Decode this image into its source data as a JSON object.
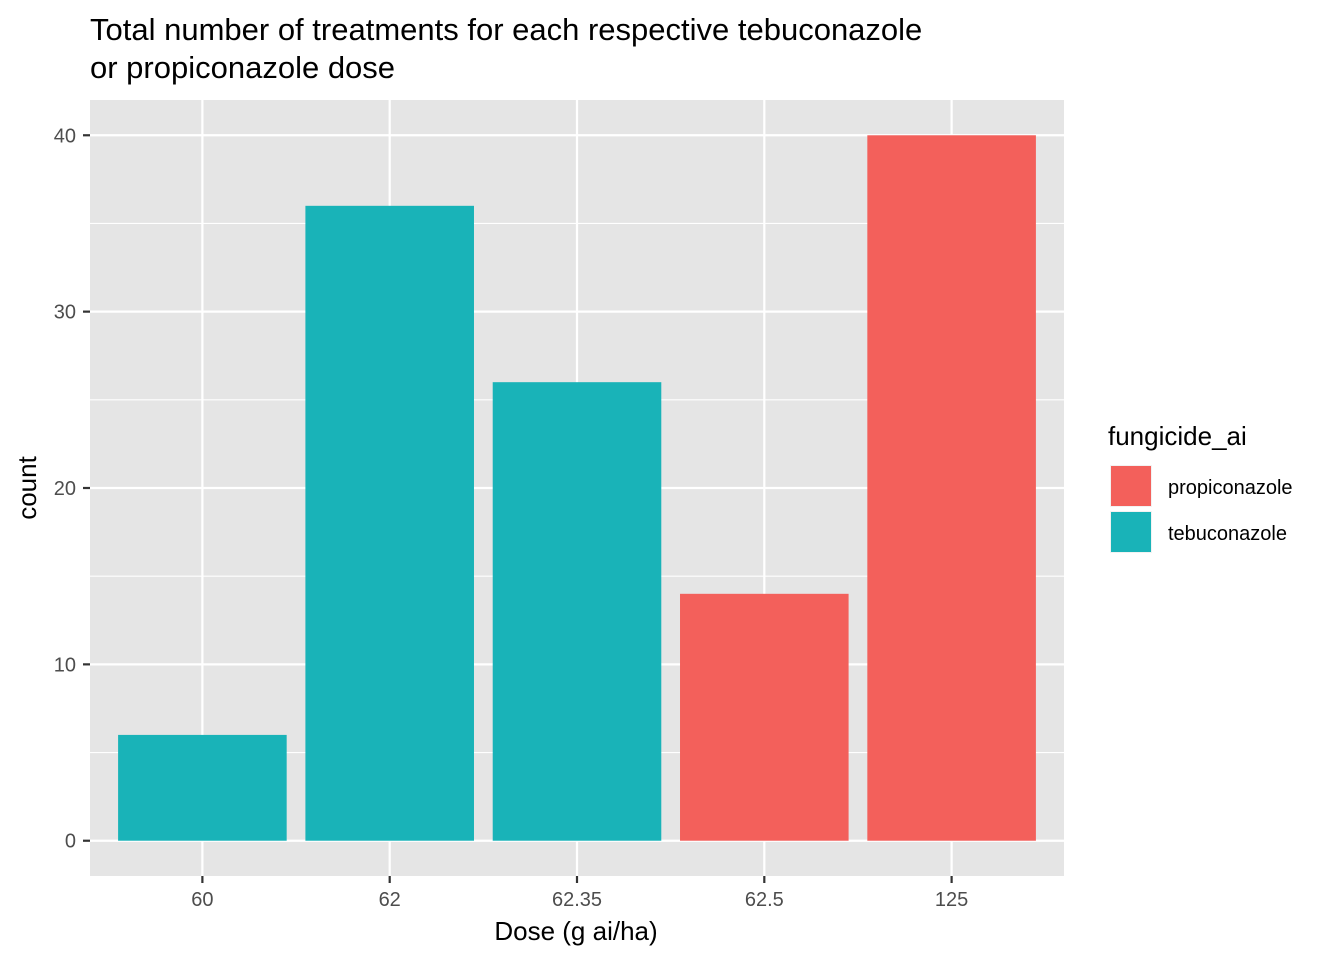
{
  "chart_data": {
    "type": "bar",
    "title": "Total number of treatments for each respective tebuconazole or propiconazole dose",
    "title_lines": [
      "Total number of treatments for each respective tebuconazole",
      "or propiconazole dose"
    ],
    "xlabel": "Dose (g ai/ha)",
    "ylabel": "count",
    "categories": [
      "60",
      "62",
      "62.35",
      "62.5",
      "125"
    ],
    "values": [
      6,
      36,
      26,
      14,
      40
    ],
    "bar_group": [
      "tebuconazole",
      "tebuconazole",
      "tebuconazole",
      "propiconazole",
      "propiconazole"
    ],
    "ylim": [
      -2,
      42
    ],
    "yticks": [
      0,
      10,
      20,
      30,
      40
    ],
    "grid": true,
    "legend": {
      "title": "fungicide_ai",
      "placement": "right",
      "entries": [
        {
          "label": "propiconazole",
          "color": "#F3605B"
        },
        {
          "label": "tebuconazole",
          "color": "#19B3B8"
        }
      ]
    },
    "colors": {
      "panel_background": "#E5E5E5",
      "grid": "#FFFFFF"
    }
  }
}
